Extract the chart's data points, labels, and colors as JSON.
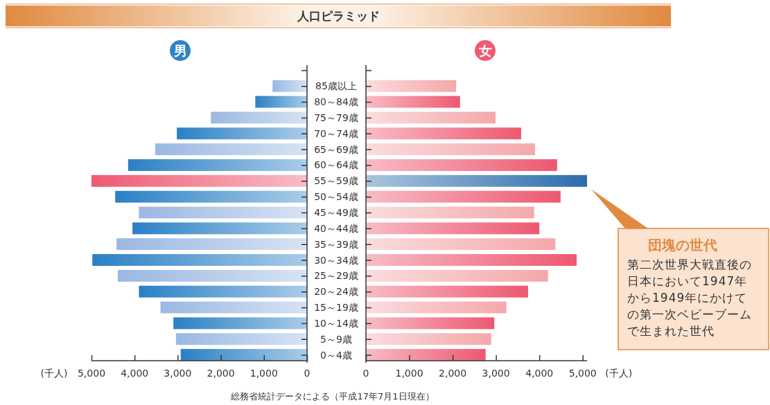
{
  "chart_data": [
    {
      "type": "bar",
      "orientation": "horizontal",
      "title": "人口ピラミッド",
      "xlabel": "(千人)",
      "categories": [
        null,
        null,
        null,
        null,
        null,
        null,
        null,
        null,
        null,
        null,
        null,
        null,
        null,
        null,
        null,
        null,
        null,
        null,
        null
      ],
      "series": [
        {
          "name": "男",
          "color": "#2f82c6",
          "colors": [
            null,
            "#9ab8e2",
            "#2a80c5",
            "#9ab8e2",
            "#2a80c5",
            "#9ab8e2",
            "#2a80c5",
            "#ee5a72",
            "#2a80c5",
            "#9ab8e2",
            "#2a80c5",
            "#9ab8e2",
            "#2a80c5",
            "#9ab8e2",
            "#2a80c5",
            "#9ab8e2",
            "#2a80c5",
            "#9ab8e2",
            "#2a80c5"
          ],
          "values": [
            null,
            800,
            1200,
            2230,
            3020,
            3520,
            4150,
            5000,
            4450,
            3900,
            4050,
            4420,
            4980,
            4390,
            3900,
            3400,
            3100,
            3040,
            2930
          ]
        }
      ],
      "xlim": [
        5000,
        0
      ],
      "xticks": [
        {
          "value": 5000,
          "label": "5,000"
        },
        {
          "value": 4000,
          "label": "4,000"
        },
        {
          "value": 3000,
          "label": "3,000"
        },
        {
          "value": 2000,
          "label": "2,000"
        },
        {
          "value": 1000,
          "label": "1,000"
        },
        0
      ],
      "tick_labels": "x",
      "legend": false,
      "grid": false
    },
    {
      "type": "bar",
      "orientation": "horizontal",
      "xlabel": "(千人)",
      "categories": [
        null,
        "85歳以上",
        "80～84歳",
        "75～79歳",
        "70～74歳",
        "65～69歳",
        "60～64歳",
        "55～59歳",
        "50～54歳",
        "45～49歳",
        "40～44歳",
        "35～39歳",
        "30～34歳",
        "25～29歳",
        "20～24歳",
        "15～19歳",
        "10～14歳",
        "5～9歳",
        "0～4歳"
      ],
      "series": [
        {
          "name": "女",
          "color": "#ee5a72",
          "colors": [
            null,
            "#f4a8ab",
            "#ee5870",
            "#f4a8ab",
            "#ee5870",
            "#f4a8ab",
            "#ee5870",
            "#2b6dab",
            "#ee5870",
            "#f4a8ab",
            "#ee5870",
            "#f4a8ab",
            "#ee5870",
            "#f4a8ab",
            "#ee5870",
            "#f4a8ab",
            "#ee5870",
            "#f4a8ab",
            "#ee5870"
          ],
          "values": [
            null,
            2080,
            2170,
            2990,
            3580,
            3900,
            4410,
            5100,
            4490,
            3880,
            4000,
            4370,
            4860,
            4200,
            3740,
            3240,
            2960,
            2890,
            2760
          ]
        }
      ],
      "xlim": [
        0,
        5100
      ],
      "xticks": [
        0,
        {
          "value": 1000,
          "label": "1,000"
        },
        {
          "value": 2000,
          "label": "2,000"
        },
        {
          "value": 3000,
          "label": "3,000"
        },
        {
          "value": 4000,
          "label": "4,000"
        },
        {
          "value": 5000,
          "label": "5,000"
        }
      ],
      "legend": false,
      "grid": false,
      "annotations": [
        "団塊の世代",
        "第二次世界大戦直後の日本において1947年から1949年にかけての第一次ベビーブームで生まれた世代",
        "総務省統計データによる（平成17年7月1日現在）"
      ]
    }
  ]
}
